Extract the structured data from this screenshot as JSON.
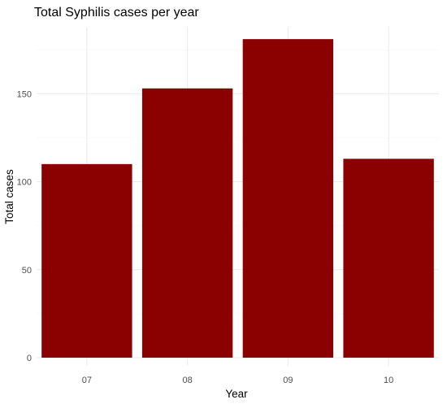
{
  "chart_data": {
    "type": "bar",
    "title": "Total Syphilis cases per year",
    "xlabel": "Year",
    "ylabel": "Total cases",
    "categories": [
      "07",
      "08",
      "09",
      "10"
    ],
    "values": [
      110,
      153,
      181,
      113
    ],
    "ylim": [
      0,
      190
    ],
    "yticks": [
      0,
      50,
      100,
      150
    ],
    "bar_color": "#8B0000",
    "grid": true,
    "legend": "none"
  }
}
